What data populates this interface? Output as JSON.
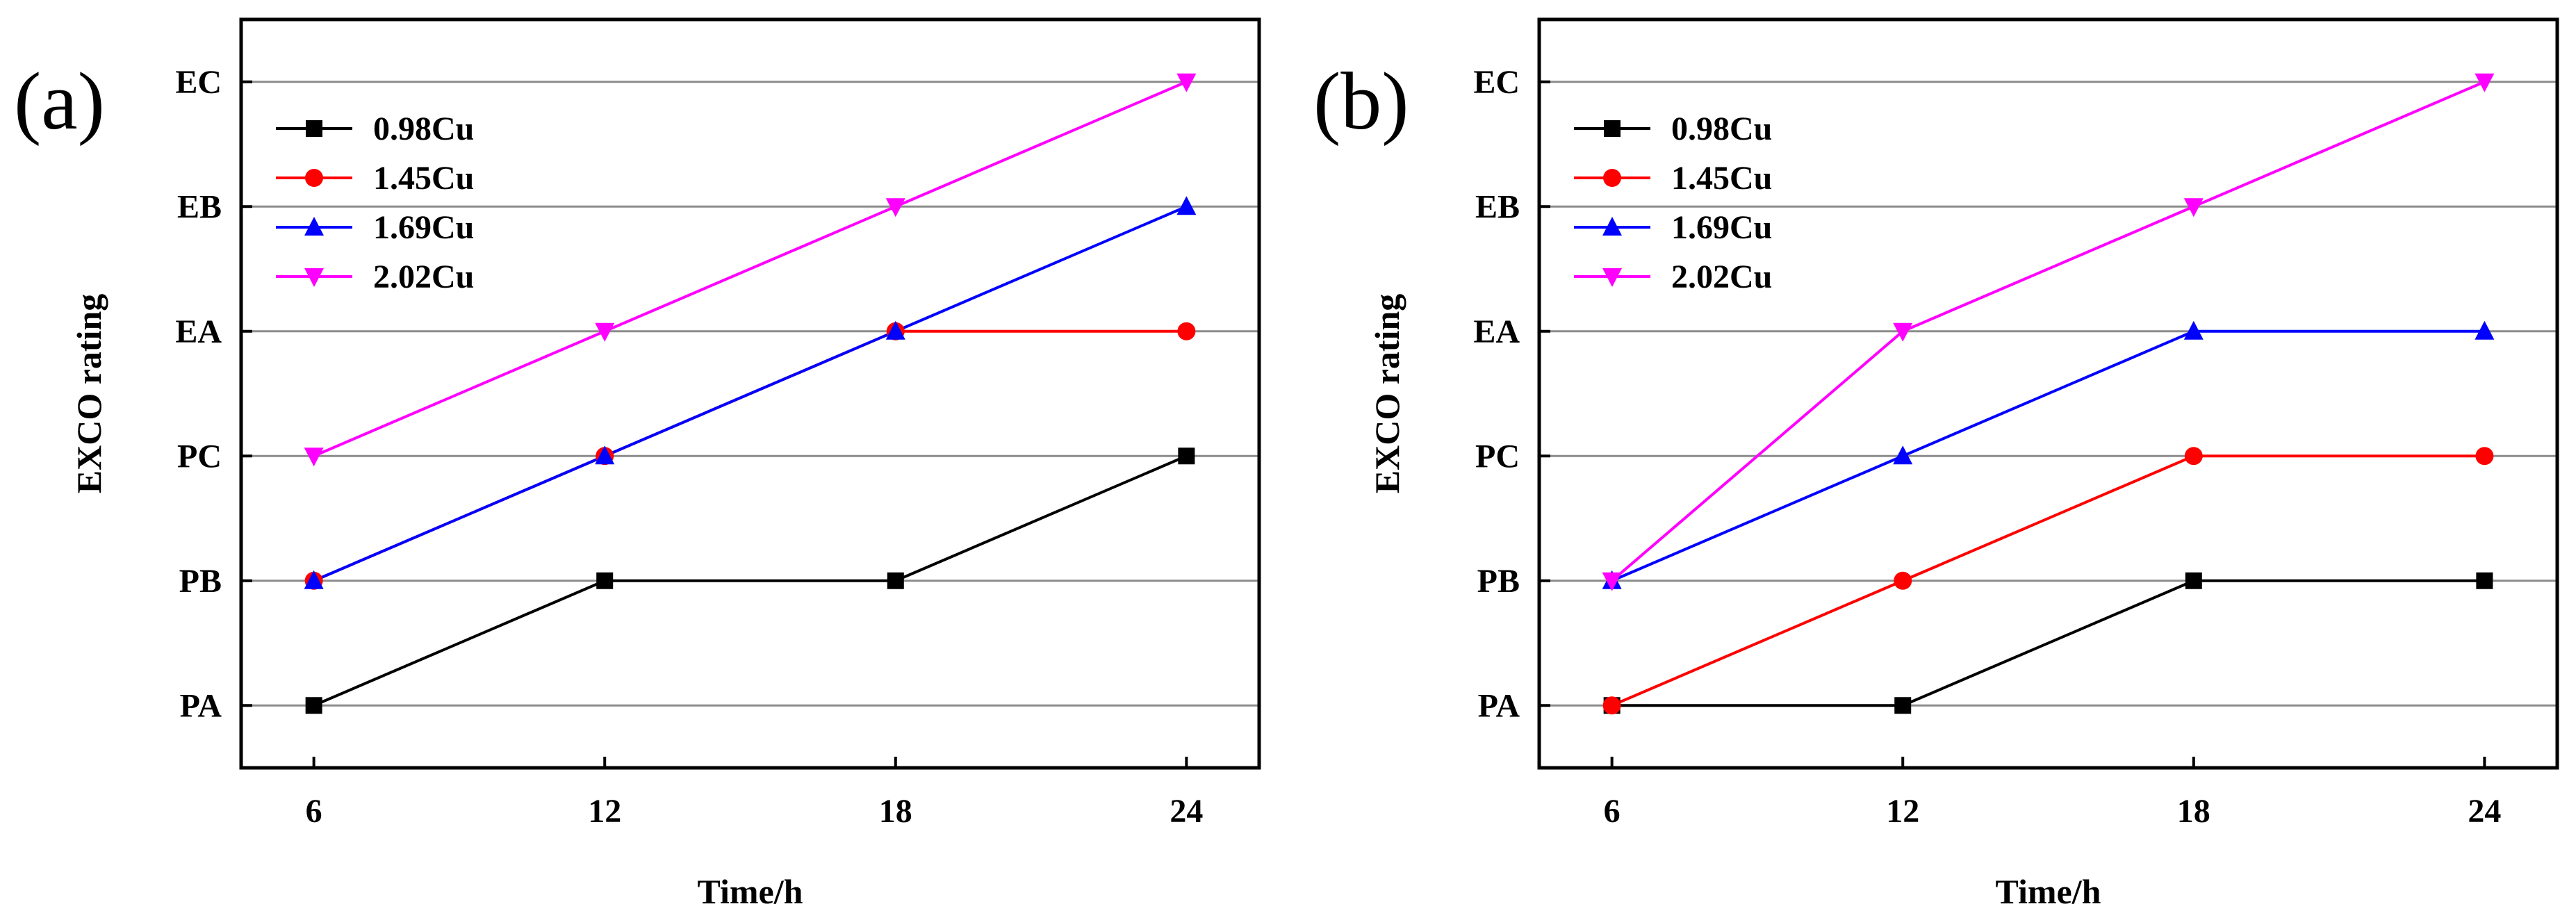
{
  "chart_data": [
    {
      "panel_label": "(a)",
      "type": "line",
      "xlabel": "Time/h",
      "ylabel": "EXCO rating",
      "x": [
        6,
        12,
        18,
        24
      ],
      "x_tick_labels": [
        "6",
        "12",
        "18",
        "24"
      ],
      "xlim": [
        4.5,
        25.5
      ],
      "categories_y": [
        "PA",
        "PB",
        "PC",
        "EA",
        "EB",
        "EC"
      ],
      "ylim": [
        -0.5,
        5.5
      ],
      "grid": "horizontal",
      "legend_position": "top-left",
      "series": [
        {
          "name": "0.98Cu",
          "color": "#000000",
          "marker": "square",
          "values": [
            0,
            1,
            1,
            2
          ],
          "value_labels": [
            "PA",
            "PB",
            "PB",
            "PC"
          ]
        },
        {
          "name": "1.45Cu",
          "color": "#ff0000",
          "marker": "circle",
          "values": [
            1,
            2,
            3,
            3
          ],
          "value_labels": [
            "PB",
            "PC",
            "EA",
            "EA"
          ]
        },
        {
          "name": "1.69Cu",
          "color": "#0000ff",
          "marker": "triangle-up",
          "values": [
            1,
            2,
            3,
            4
          ],
          "value_labels": [
            "PB",
            "PC",
            "EA",
            "EB"
          ]
        },
        {
          "name": "2.02Cu",
          "color": "#ff00ff",
          "marker": "triangle-down",
          "values": [
            2,
            3,
            4,
            5
          ],
          "value_labels": [
            "PC",
            "EA",
            "EB",
            "EC"
          ]
        }
      ]
    },
    {
      "panel_label": "(b)",
      "type": "line",
      "xlabel": "Time/h",
      "ylabel": "EXCO rating",
      "x": [
        6,
        12,
        18,
        24
      ],
      "x_tick_labels": [
        "6",
        "12",
        "18",
        "24"
      ],
      "xlim": [
        4.5,
        25.5
      ],
      "categories_y": [
        "PA",
        "PB",
        "PC",
        "EA",
        "EB",
        "EC"
      ],
      "ylim": [
        -0.5,
        5.5
      ],
      "grid": "horizontal",
      "legend_position": "top-left",
      "series": [
        {
          "name": "0.98Cu",
          "color": "#000000",
          "marker": "square",
          "values": [
            0,
            0,
            1,
            1
          ],
          "value_labels": [
            "PA",
            "PA",
            "PB",
            "PB"
          ]
        },
        {
          "name": "1.45Cu",
          "color": "#ff0000",
          "marker": "circle",
          "values": [
            0,
            1,
            2,
            2
          ],
          "value_labels": [
            "PA",
            "PB",
            "PC",
            "PC"
          ]
        },
        {
          "name": "1.69Cu",
          "color": "#0000ff",
          "marker": "triangle-up",
          "values": [
            1,
            2,
            3,
            3
          ],
          "value_labels": [
            "PB",
            "PC",
            "EA",
            "EA"
          ]
        },
        {
          "name": "2.02Cu",
          "color": "#ff00ff",
          "marker": "triangle-down",
          "values": [
            1,
            3,
            4,
            5
          ],
          "value_labels": [
            "PB",
            "EA",
            "EB",
            "EC"
          ]
        }
      ]
    }
  ]
}
